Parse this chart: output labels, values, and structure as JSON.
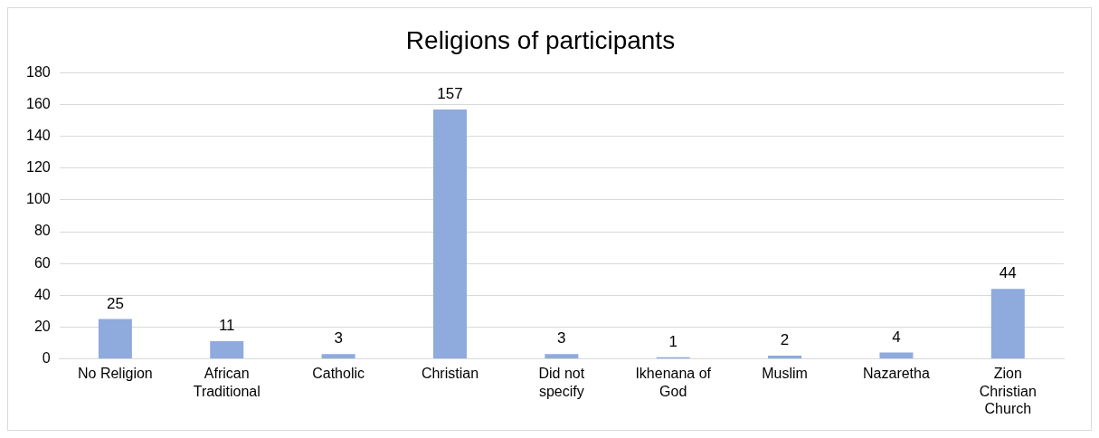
{
  "chart_data": {
    "type": "bar",
    "title": "Religions of participants",
    "categories": [
      "No Religion",
      "African Traditional",
      "Catholic",
      "Christian",
      "Did not specify",
      "Ikhenana of God",
      "Muslim",
      "Nazaretha",
      "Zion Christian Church"
    ],
    "values": [
      25,
      11,
      3,
      157,
      3,
      1,
      2,
      4,
      44
    ],
    "color": "#8faadc",
    "ylim": [
      0,
      180
    ],
    "yticks": [
      0,
      20,
      40,
      60,
      80,
      100,
      120,
      140,
      160,
      180
    ],
    "grid": "y",
    "data_labels": true,
    "legend": false
  }
}
